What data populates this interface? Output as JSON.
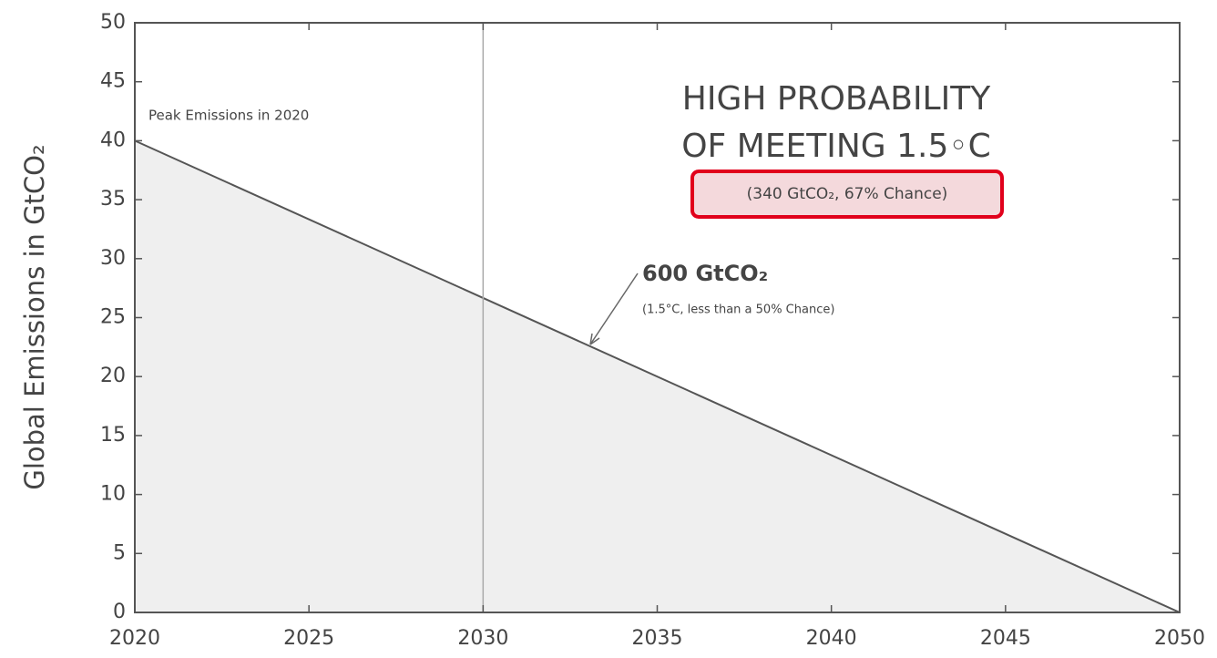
{
  "chart_data": {
    "type": "area",
    "y_label": "Global Emissions in GtCO₂",
    "x": [
      2020,
      2050
    ],
    "values": [
      40,
      0
    ],
    "color": "#555555",
    "fill": "#efefef",
    "xlim": [
      2020,
      2050
    ],
    "ylim": [
      0,
      50
    ],
    "xticks": [
      2020,
      2025,
      2030,
      2035,
      2040,
      2045,
      2050
    ],
    "yticks": [
      0,
      5,
      10,
      15,
      20,
      25,
      30,
      35,
      40,
      45,
      50
    ],
    "vline": 2030,
    "annotations": {
      "peak": "Peak Emissions in 2020",
      "headline_1": "HIGH PROBABILITY",
      "headline_2": "OF MEETING 1.5◦C",
      "high_prob_note": "(340 GtCO₂, 67% Chance)",
      "budget": "600 GtCO₂",
      "budget_note": "(1.5°C, less than a 50% Chance)"
    }
  }
}
